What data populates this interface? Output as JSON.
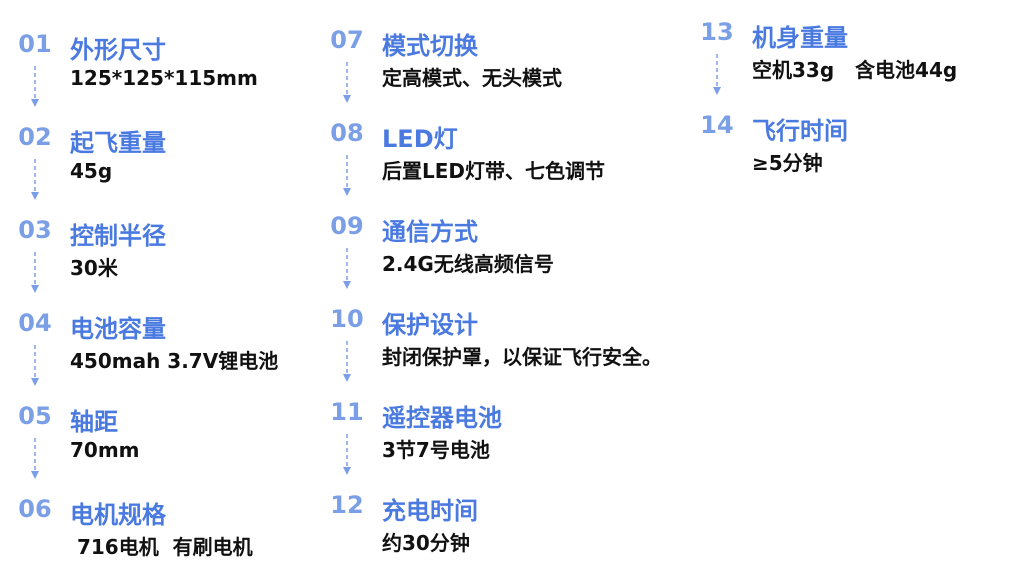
{
  "accent_color": "#4a7ae0",
  "number_color": "#7b9fe6",
  "items": [
    {
      "num": "01",
      "title": "外形尺寸",
      "value": "125*125*115mm",
      "arrow": true
    },
    {
      "num": "02",
      "title": "起飞重量",
      "value": "45g",
      "arrow": true
    },
    {
      "num": "03",
      "title": "控制半径",
      "value": "30米",
      "arrow": true
    },
    {
      "num": "04",
      "title": "电池容量",
      "value": "450mah 3.7V锂电池",
      "arrow": true
    },
    {
      "num": "05",
      "title": "轴距",
      "value": "70mm",
      "arrow": true
    },
    {
      "num": "06",
      "title": "电机规格",
      "value": " 716电机  有刷电机",
      "arrow": false
    },
    {
      "num": "07",
      "title": "模式切换",
      "value": "定高模式、无头模式",
      "arrow": true
    },
    {
      "num": "08",
      "title": "LED灯",
      "value": "后置LED灯带、七色调节",
      "arrow": true
    },
    {
      "num": "09",
      "title": "通信方式",
      "value": "2.4G无线高频信号",
      "arrow": true
    },
    {
      "num": "10",
      "title": "保护设计",
      "value": "封闭保护罩，以保证飞行安全。",
      "arrow": true
    },
    {
      "num": "11",
      "title": "遥控器电池",
      "value": "3节7号电池",
      "arrow": true
    },
    {
      "num": "12",
      "title": "充电时间",
      "value": "约30分钟",
      "arrow": false
    },
    {
      "num": "13",
      "title": "机身重量",
      "value": "空机33g   含电池44g",
      "arrow": true
    },
    {
      "num": "14",
      "title": "飞行时间",
      "value": "≥5分钟",
      "arrow": false
    }
  ]
}
